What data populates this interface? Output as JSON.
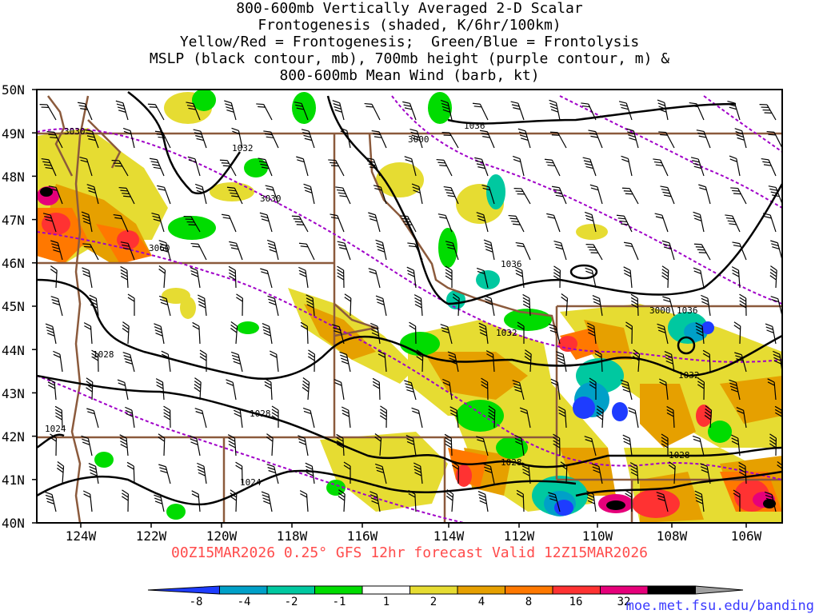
{
  "title_lines": [
    "800-600mb Vertically Averaged 2-D Scalar",
    "Frontogenesis (shaded, K/6hr/100km)",
    "Yellow/Red = Frontogenesis;  Green/Blue = Frontolysis",
    "MSLP (black contour, mb), 700mb height (purple contour, m) &",
    "800-600mb Mean Wind (barb, kt)"
  ],
  "forecast_line": "00Z15MAR2026 0.25° GFS 12hr forecast Valid 12Z15MAR2026",
  "credit": "moe.met.fsu.edu/banding",
  "lat_labels": [
    "50N",
    "49N",
    "48N",
    "47N",
    "46N",
    "45N",
    "44N",
    "43N",
    "42N",
    "41N",
    "40N"
  ],
  "lon_labels": [
    "124W",
    "122W",
    "120W",
    "118W",
    "116W",
    "114W",
    "112W",
    "110W",
    "108W",
    "106W"
  ],
  "mslp_labels": [
    "1036",
    "1032",
    "1028",
    "1024",
    "1032",
    "1028",
    "1024",
    "1036",
    "1032",
    "1028",
    "1028"
  ],
  "height_labels": [
    "3030",
    "3000",
    "3030",
    "3060",
    "3000"
  ],
  "colorbar": {
    "colors": [
      "#1e3cff",
      "#00a0c8",
      "#00c8a0",
      "#00dc00",
      "#ffffff",
      "#e6dc32",
      "#e6a000",
      "#ff7800",
      "#ff3232",
      "#e6007a",
      "#000000",
      "#a0a0a0"
    ],
    "labels": [
      "-8",
      "-4",
      "-2",
      "-1",
      "1",
      "2",
      "4",
      "8",
      "16",
      "32"
    ]
  },
  "colors": {
    "mslp": "#000000",
    "height": "#a000c8",
    "borders": "#8b5a3c",
    "forecast_text": "#ff4b4b",
    "credit_text": "#3a3aff"
  }
}
